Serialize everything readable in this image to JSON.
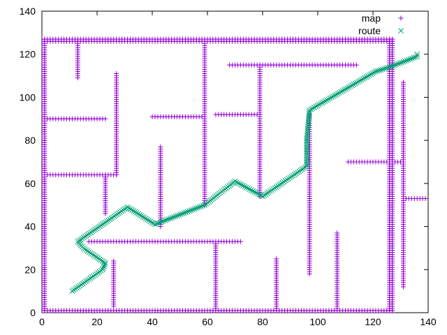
{
  "chart_data": {
    "type": "scatter",
    "title": "",
    "xlabel": "",
    "ylabel": "",
    "xlim": [
      0,
      140
    ],
    "ylim": [
      0,
      140
    ],
    "xticks": [
      0,
      20,
      40,
      60,
      80,
      100,
      120,
      140
    ],
    "yticks": [
      0,
      20,
      40,
      60,
      80,
      100,
      120,
      140
    ],
    "grid": false,
    "legend_position": "top-right",
    "series": [
      {
        "name": "map",
        "marker": "plus",
        "color": "#9400d3",
        "segments": [
          [
            [
              0,
              0
            ],
            [
              127,
              0
            ]
          ],
          [
            [
              0,
              1
            ],
            [
              127,
              1
            ]
          ],
          [
            [
              0,
              126
            ],
            [
              127,
              126
            ]
          ],
          [
            [
              0,
              127
            ],
            [
              127,
              127
            ]
          ],
          [
            [
              0,
              0
            ],
            [
              0,
              127
            ]
          ],
          [
            [
              1,
              0
            ],
            [
              1,
              127
            ]
          ],
          [
            [
              126,
              0
            ],
            [
              126,
              127
            ]
          ],
          [
            [
              127,
              0
            ],
            [
              127,
              127
            ]
          ],
          [
            [
              13,
              109
            ],
            [
              13,
              126
            ]
          ],
          [
            [
              27,
              64
            ],
            [
              27,
              111
            ]
          ],
          [
            [
              2,
              90
            ],
            [
              23,
              90
            ]
          ],
          [
            [
              2,
              64
            ],
            [
              27,
              64
            ]
          ],
          [
            [
              23,
              46
            ],
            [
              23,
              64
            ]
          ],
          [
            [
              43,
              40
            ],
            [
              43,
              77
            ]
          ],
          [
            [
              40,
              91
            ],
            [
              58,
              91
            ]
          ],
          [
            [
              59,
              50
            ],
            [
              59,
              126
            ]
          ],
          [
            [
              63,
              92
            ],
            [
              79,
              92
            ]
          ],
          [
            [
              68,
              115
            ],
            [
              114,
              115
            ]
          ],
          [
            [
              79,
              54
            ],
            [
              79,
              115
            ]
          ],
          [
            [
              97,
              18
            ],
            [
              97,
              92
            ]
          ],
          [
            [
              17,
              33
            ],
            [
              72,
              33
            ]
          ],
          [
            [
              26,
              3
            ],
            [
              26,
              24
            ]
          ],
          [
            [
              63,
              2
            ],
            [
              63,
              32
            ]
          ],
          [
            [
              85,
              2
            ],
            [
              85,
              25
            ]
          ],
          [
            [
              107,
              2
            ],
            [
              107,
              37
            ]
          ],
          [
            [
              111,
              70
            ],
            [
              131,
              70
            ]
          ],
          [
            [
              131,
              12
            ],
            [
              131,
              107
            ]
          ],
          [
            [
              131,
              53
            ],
            [
              139,
              53
            ]
          ]
        ]
      },
      {
        "name": "route",
        "marker": "cross",
        "color": "#009e73",
        "points": [
          [
            11,
            10
          ],
          [
            22,
            20
          ],
          [
            23,
            23
          ],
          [
            15,
            30
          ],
          [
            13,
            33
          ],
          [
            22,
            41
          ],
          [
            31,
            49
          ],
          [
            41,
            41
          ],
          [
            59,
            50
          ],
          [
            70,
            61
          ],
          [
            80,
            54
          ],
          [
            96,
            68
          ],
          [
            96,
            80
          ],
          [
            97,
            94
          ],
          [
            121,
            112
          ],
          [
            126,
            114
          ],
          [
            136,
            119
          ],
          [
            136,
            120
          ]
        ]
      }
    ]
  }
}
